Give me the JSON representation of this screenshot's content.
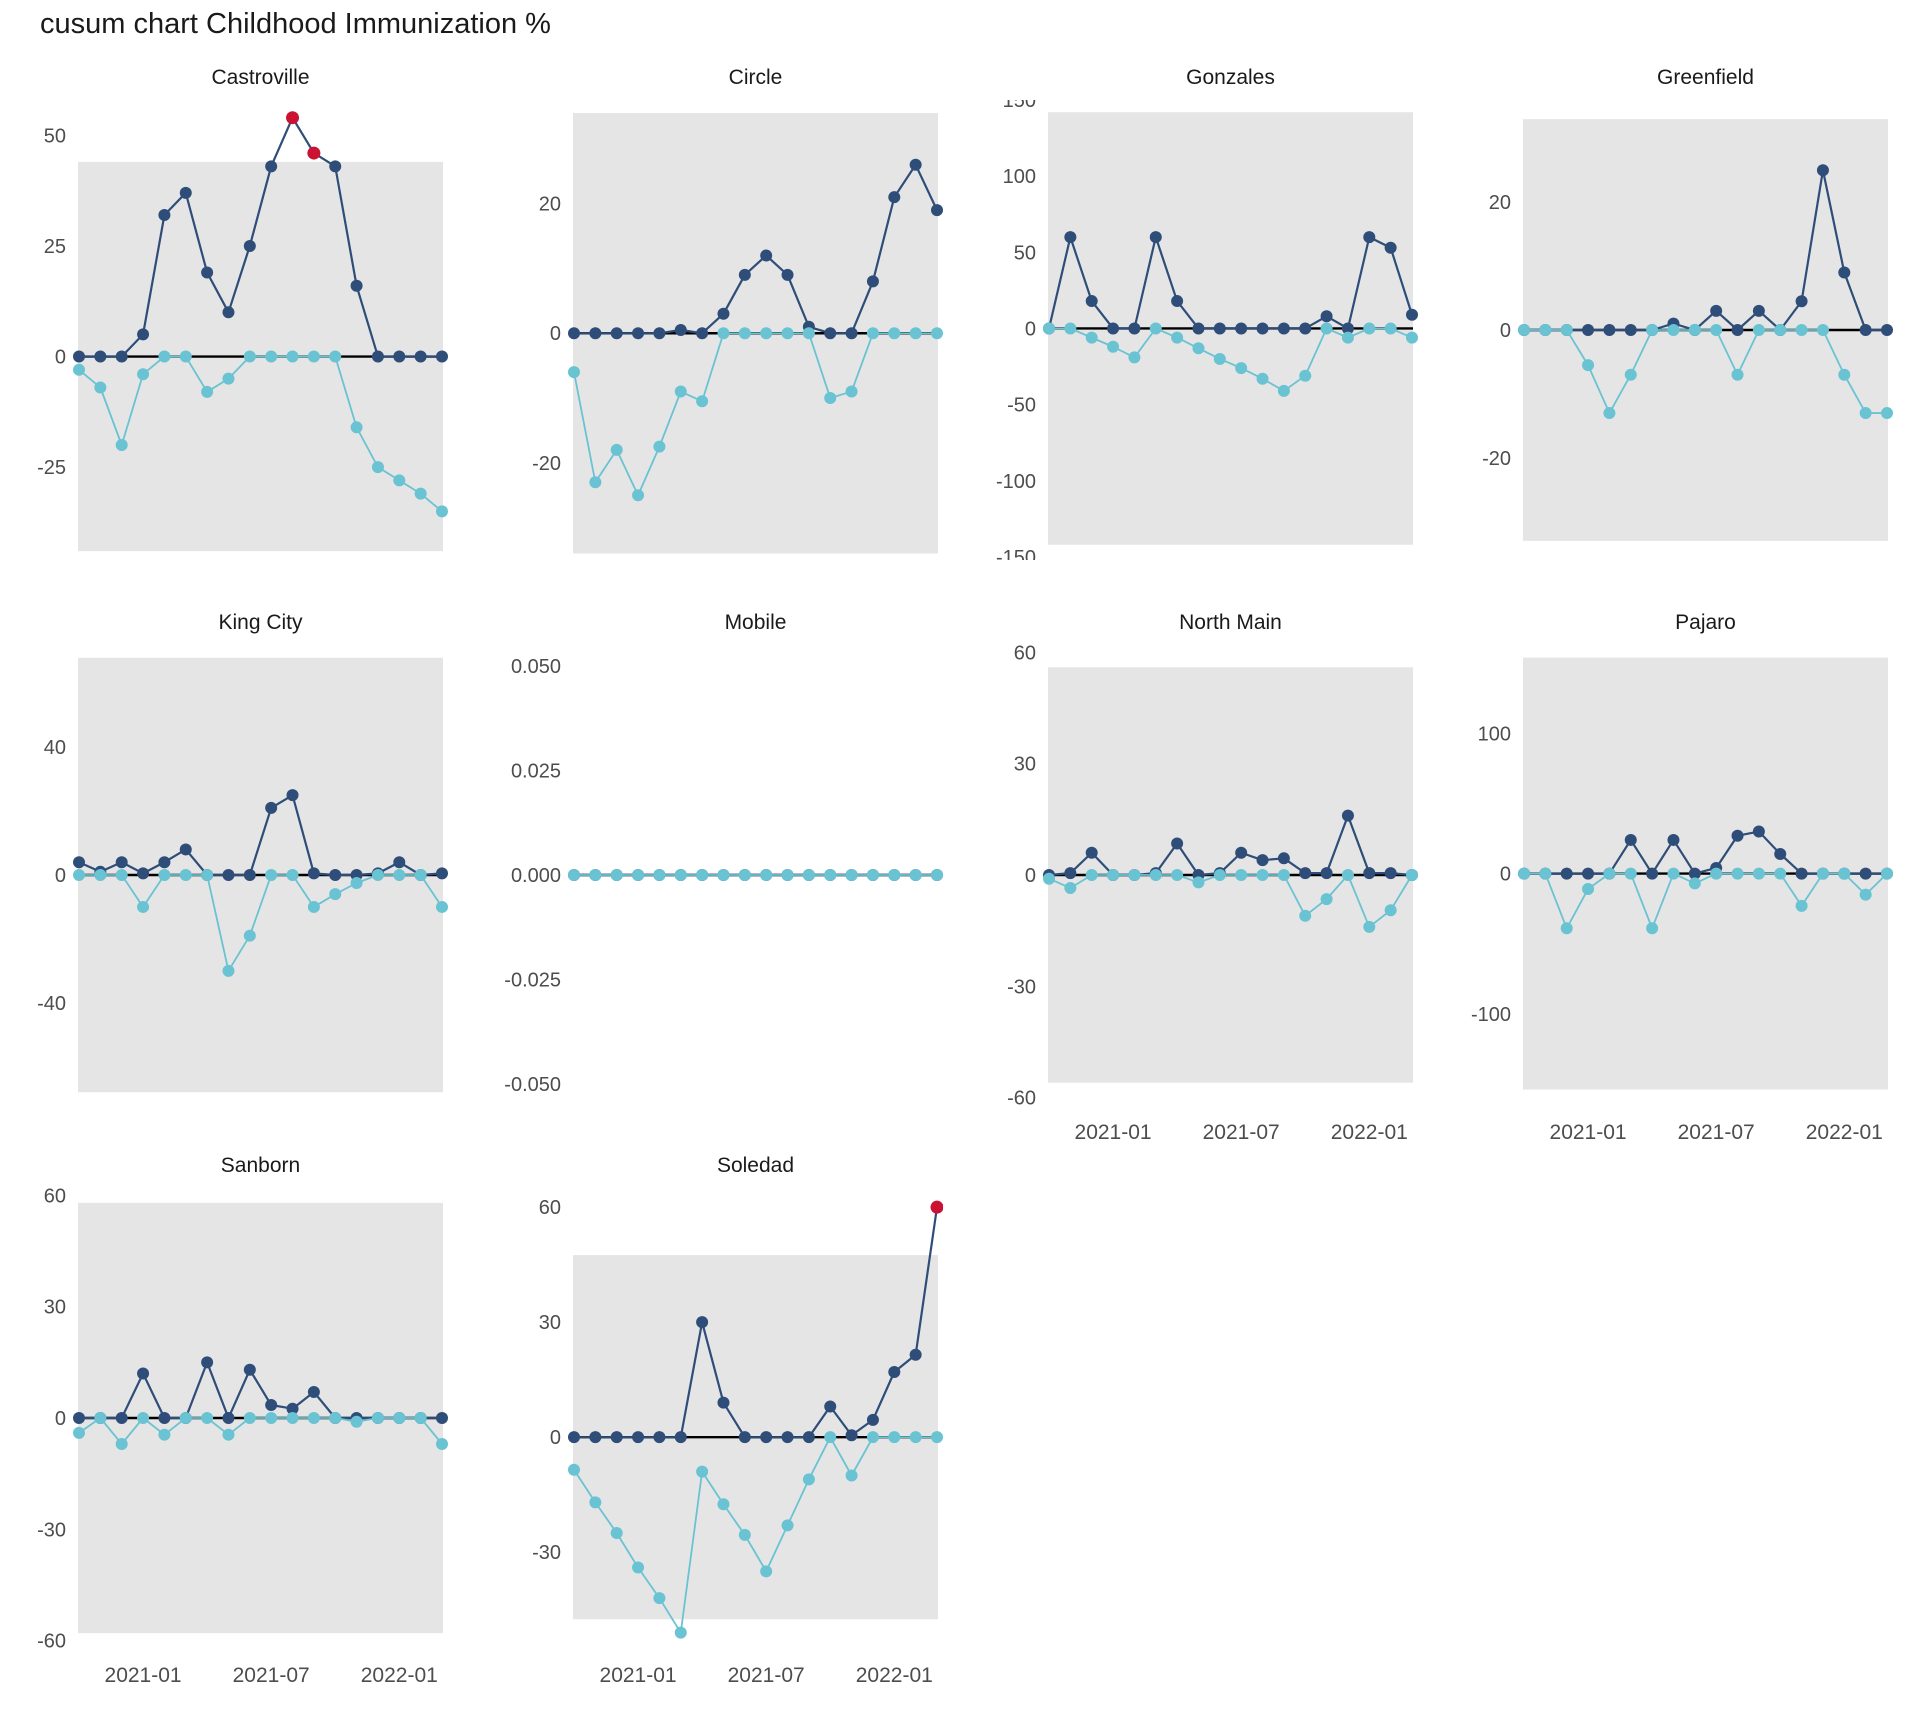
{
  "title": "cusum chart Childhood Immunization %",
  "colors": {
    "cusum_high": "#2e4d78",
    "cusum_low": "#69c3d2",
    "signal": "#cb1233",
    "band": "#e5e5e5",
    "zero_line": "#000000",
    "axis_text": "#4d4d4d",
    "title_text": "#1a1a1a"
  },
  "chart_data": {
    "type": "line",
    "subtype": "cusum-control-chart-facets",
    "title": "cusum chart Childhood Immunization %",
    "x": [
      "2020-10",
      "2020-11",
      "2020-12",
      "2021-01",
      "2021-02",
      "2021-03",
      "2021-04",
      "2021-05",
      "2021-06",
      "2021-07",
      "2021-08",
      "2021-09",
      "2021-10",
      "2021-11",
      "2021-12",
      "2022-01",
      "2022-02",
      "2022-03"
    ],
    "x_ticks": [
      {
        "index": 3,
        "label": "2021-01"
      },
      {
        "index": 9,
        "label": "2021-07"
      },
      {
        "index": 15,
        "label": "2022-01"
      }
    ],
    "legend": "none",
    "grid": "off",
    "facets": [
      {
        "name": "Castroville",
        "row": 0,
        "col": 0,
        "x_axis": false,
        "ylim": [
          -46,
          58
        ],
        "band_limit": 44,
        "yticks": [
          {
            "value": 50,
            "label": "50"
          },
          {
            "value": 25,
            "label": "25"
          },
          {
            "value": 0,
            "label": "0"
          },
          {
            "value": -25,
            "label": "-25"
          }
        ],
        "cusum_high": [
          0,
          0,
          0,
          5,
          32,
          37,
          19,
          10,
          25,
          43,
          54,
          46,
          43,
          16,
          0,
          0,
          0,
          0
        ],
        "cusum_low": [
          -3,
          -7,
          -20,
          -4,
          0,
          0,
          -8,
          -5,
          0,
          0,
          0,
          0,
          0,
          -16,
          -25,
          -28,
          -31,
          -35
        ],
        "signals_high": [
          10,
          11
        ]
      },
      {
        "name": "Circle",
        "row": 0,
        "col": 1,
        "x_axis": false,
        "ylim": [
          -35,
          36
        ],
        "band_limit": 34,
        "yticks": [
          {
            "value": 20,
            "label": "20"
          },
          {
            "value": 0,
            "label": "0"
          },
          {
            "value": -20,
            "label": "-20"
          }
        ],
        "cusum_high": [
          0,
          0,
          0,
          0,
          0,
          0.5,
          0,
          3,
          9,
          12,
          9,
          1,
          0,
          0,
          8,
          21,
          26,
          19
        ],
        "cusum_low": [
          -6,
          -23,
          -18,
          -25,
          -17.5,
          -9,
          -10.5,
          0,
          0,
          0,
          0,
          0,
          -10,
          -9,
          0,
          0,
          0,
          0
        ],
        "signals_high": []
      },
      {
        "name": "Gonzales",
        "row": 0,
        "col": 2,
        "x_axis": false,
        "ylim": [
          -152,
          150
        ],
        "band_limit": 142,
        "yticks": [
          {
            "value": 150,
            "label": "150"
          },
          {
            "value": 100,
            "label": "100"
          },
          {
            "value": 50,
            "label": "50"
          },
          {
            "value": 0,
            "label": "0"
          },
          {
            "value": -50,
            "label": "-50"
          },
          {
            "value": -100,
            "label": "-100"
          },
          {
            "value": -150,
            "label": "-150"
          }
        ],
        "cusum_high": [
          0,
          60,
          18,
          0,
          0,
          60,
          18,
          0,
          0,
          0,
          0,
          0,
          0,
          8,
          0,
          60,
          53,
          9
        ],
        "cusum_low": [
          0,
          0,
          -6,
          -12,
          -19,
          0,
          -6,
          -13,
          -20,
          -26,
          -33,
          -41,
          -31,
          0,
          -6,
          0,
          0,
          -6
        ],
        "signals_high": []
      },
      {
        "name": "Greenfield",
        "row": 0,
        "col": 3,
        "x_axis": false,
        "ylim": [
          -36,
          36
        ],
        "band_limit": 33,
        "yticks": [
          {
            "value": 20,
            "label": "20"
          },
          {
            "value": 0,
            "label": "0"
          },
          {
            "value": -20,
            "label": "-20"
          }
        ],
        "cusum_high": [
          0,
          0,
          0,
          0,
          0,
          0,
          0,
          1,
          0,
          3,
          0,
          3,
          0,
          4.5,
          25,
          9,
          0,
          0
        ],
        "cusum_low": [
          0,
          0,
          0,
          -5.5,
          -13,
          -7,
          0,
          0,
          0,
          0,
          -7,
          0,
          0,
          0,
          0,
          -7,
          -13,
          -13
        ],
        "signals_high": []
      },
      {
        "name": "King City",
        "row": 1,
        "col": 0,
        "x_axis": false,
        "ylim": [
          -72,
          72
        ],
        "band_limit": 68,
        "yticks": [
          {
            "value": 40,
            "label": "40"
          },
          {
            "value": 0,
            "label": "0"
          },
          {
            "value": -40,
            "label": "-40"
          }
        ],
        "cusum_high": [
          4,
          1,
          4,
          0.5,
          4,
          8,
          0,
          0,
          0,
          21,
          25,
          0.5,
          0,
          0,
          0.5,
          4,
          0,
          0.5
        ],
        "cusum_low": [
          0,
          0,
          0,
          -10,
          0,
          0,
          0,
          -30,
          -19,
          0,
          0,
          -10,
          -6,
          -2.5,
          0,
          0,
          0,
          -10
        ],
        "signals_high": []
      },
      {
        "name": "Mobile",
        "row": 1,
        "col": 1,
        "x_axis": false,
        "ylim": [
          -0.055,
          0.055
        ],
        "band_limit": null,
        "yticks": [
          {
            "value": 0.05,
            "label": "0.050"
          },
          {
            "value": 0.025,
            "label": "0.025"
          },
          {
            "value": 0,
            "label": "0.000"
          },
          {
            "value": -0.025,
            "label": "-0.025"
          },
          {
            "value": -0.05,
            "label": "-0.050"
          }
        ],
        "cusum_high": [
          0,
          0,
          0,
          0,
          0,
          0,
          0,
          0,
          0,
          0,
          0,
          0,
          0,
          0,
          0,
          0,
          0,
          0
        ],
        "cusum_low": [
          0,
          0,
          0,
          0,
          0,
          0,
          0,
          0,
          0,
          0,
          0,
          0,
          0,
          0,
          0,
          0,
          0,
          0
        ],
        "signals_high": []
      },
      {
        "name": "North Main",
        "row": 1,
        "col": 2,
        "x_axis": true,
        "ylim": [
          -62,
          62
        ],
        "band_limit": 56,
        "yticks": [
          {
            "value": 60,
            "label": "60"
          },
          {
            "value": 30,
            "label": "30"
          },
          {
            "value": 0,
            "label": "0"
          },
          {
            "value": -30,
            "label": "-30"
          },
          {
            "value": -60,
            "label": "-60"
          }
        ],
        "cusum_high": [
          0,
          0.5,
          6,
          0,
          0,
          0.5,
          8.5,
          0,
          0.5,
          6,
          4,
          4.5,
          0.5,
          0.5,
          16,
          0.5,
          0.5,
          0
        ],
        "cusum_low": [
          -1,
          -3.5,
          0,
          0,
          0,
          0,
          0,
          -2,
          0,
          0,
          0,
          0,
          -11,
          -6.5,
          0,
          -14,
          -9.5,
          0
        ],
        "signals_high": []
      },
      {
        "name": "Pajaro",
        "row": 1,
        "col": 3,
        "x_axis": true,
        "ylim": [
          -165,
          163
        ],
        "band_limit": 154,
        "yticks": [
          {
            "value": 100,
            "label": "100"
          },
          {
            "value": 0,
            "label": "0"
          },
          {
            "value": -100,
            "label": "-100"
          }
        ],
        "cusum_high": [
          0,
          0,
          0,
          0,
          0,
          24,
          0,
          24,
          0,
          4,
          27,
          30,
          14,
          0,
          0,
          0,
          0,
          0
        ],
        "cusum_low": [
          0,
          0,
          -39,
          -11,
          0,
          0,
          -39,
          0,
          -7,
          0,
          0,
          0,
          0,
          -23,
          0,
          0,
          -15,
          0
        ],
        "signals_high": []
      },
      {
        "name": "Sanborn",
        "row": 2,
        "col": 0,
        "x_axis": true,
        "ylim": [
          -62,
          62
        ],
        "band_limit": 58,
        "yticks": [
          {
            "value": 60,
            "label": "60"
          },
          {
            "value": 30,
            "label": "30"
          },
          {
            "value": 0,
            "label": "0"
          },
          {
            "value": -30,
            "label": "-30"
          },
          {
            "value": -60,
            "label": "-60"
          }
        ],
        "cusum_high": [
          0,
          0,
          0,
          12,
          0,
          0,
          15,
          0,
          13,
          3.5,
          2.5,
          7,
          0,
          0,
          0,
          0,
          0,
          0
        ],
        "cusum_low": [
          -4,
          0,
          -7,
          0,
          -4.5,
          0,
          0,
          -4.5,
          0,
          0,
          0,
          0,
          0,
          -1,
          0,
          0,
          0,
          -7
        ],
        "signals_high": []
      },
      {
        "name": "Soledad",
        "row": 2,
        "col": 1,
        "x_axis": true,
        "ylim": [
          -55,
          65
        ],
        "band_limit": 47.5,
        "yticks": [
          {
            "value": 60,
            "label": "60"
          },
          {
            "value": 30,
            "label": "30"
          },
          {
            "value": 0,
            "label": "0"
          },
          {
            "value": -30,
            "label": "-30"
          }
        ],
        "cusum_high": [
          0,
          0,
          0,
          0,
          0,
          0,
          30,
          9,
          0,
          0,
          0,
          0,
          8,
          0.5,
          4.5,
          17,
          21.5,
          60
        ],
        "cusum_low": [
          -8.5,
          -17,
          -25,
          -34,
          -42,
          -51,
          -9,
          -17.5,
          -25.5,
          -35,
          -23,
          -11,
          0,
          -10,
          0,
          0,
          0,
          0
        ],
        "signals_high": [
          17
        ]
      }
    ]
  }
}
